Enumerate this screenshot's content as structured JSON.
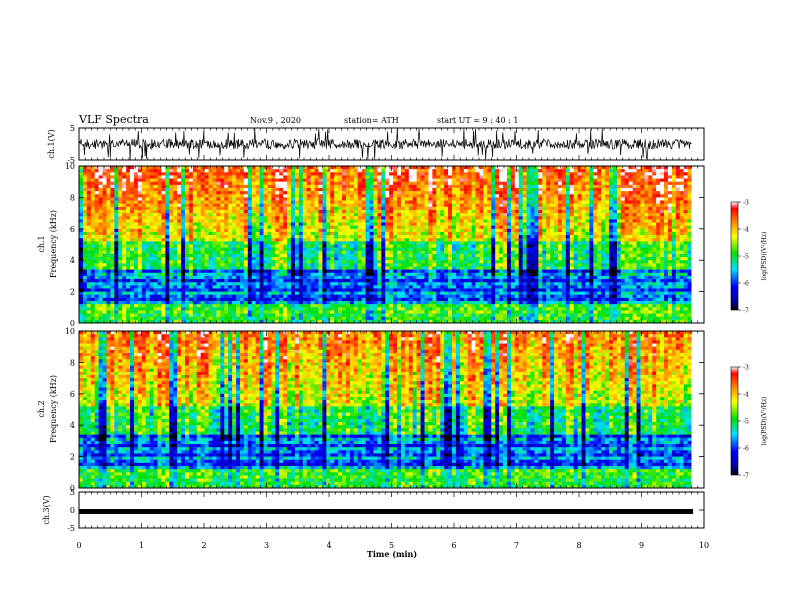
{
  "header": {
    "title": "VLF Spectra",
    "date": "Nov.9  , 2020",
    "station": "station= ATH",
    "start": "start  UT  =   9  : 40 : 1"
  },
  "chart_data": [
    {
      "type": "line",
      "panel": "ch1-waveform",
      "ylabel": "ch.1(V)",
      "ylim": [
        -5,
        5
      ],
      "yticks": [
        "5",
        "-5"
      ],
      "x_range_min": [
        0,
        9.8
      ],
      "signal": "noisy waveform, mostly between -2 and 2 V with bursts to ±5 V"
    },
    {
      "type": "heatmap",
      "panel": "ch1-spectrogram",
      "ylabel": "ch.1\nFrequency (kHz)",
      "ylim": [
        0,
        10
      ],
      "yticks": [
        "0",
        "2",
        "4",
        "6",
        "8",
        "10"
      ],
      "x_range_min": [
        0,
        9.8
      ],
      "colorbar": {
        "label": "log(PSD)(V²/Hz)",
        "ticks": [
          "-3",
          "-4",
          "-5",
          "-6",
          "-7"
        ],
        "range": [
          -7,
          -3
        ]
      }
    },
    {
      "type": "heatmap",
      "panel": "ch2-spectrogram",
      "ylabel": "ch.2\nFrequency (kHz)",
      "ylim": [
        0,
        10
      ],
      "yticks": [
        "0",
        "2",
        "4",
        "6",
        "8",
        "10"
      ],
      "x_range_min": [
        0,
        9.8
      ],
      "colorbar": {
        "label": "log(PSD)(V²/Hz)",
        "ticks": [
          "-3",
          "-4",
          "-5",
          "-6",
          "-7"
        ],
        "range": [
          -7,
          -3
        ]
      }
    },
    {
      "type": "line",
      "panel": "ch3-waveform",
      "ylabel": "ch.3(V)",
      "ylim": [
        -5,
        5
      ],
      "yticks": [
        "5",
        "0",
        "-5"
      ],
      "x_range_min": [
        0,
        9.8
      ],
      "signal": "near-constant level around -0.5 V"
    }
  ],
  "xaxis": {
    "label": "Time  (min)",
    "ticks": [
      "0",
      "1",
      "2",
      "3",
      "4",
      "5",
      "6",
      "7",
      "8",
      "9",
      "10"
    ],
    "xlim": [
      0,
      10
    ]
  }
}
